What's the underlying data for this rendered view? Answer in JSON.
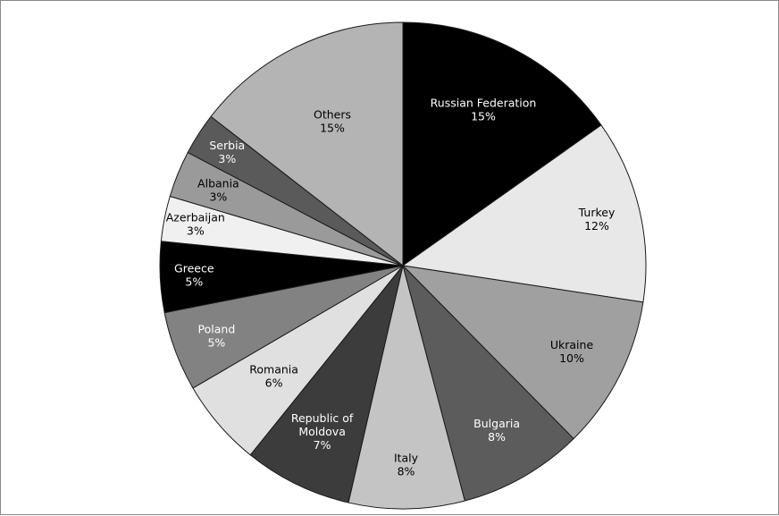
{
  "chart_data": {
    "type": "pie",
    "title": "",
    "start_direction": "top",
    "direction": "clockwise",
    "slices": [
      {
        "label_lines": [
          "Russian Federation"
        ],
        "value_label": "15%",
        "value": 15.2,
        "color": "#000000",
        "text_color": "#ffffff"
      },
      {
        "label_lines": [
          "Turkey"
        ],
        "value_label": "12%",
        "value": 12.2,
        "color": "#e8e8e8",
        "text_color": "#000000"
      },
      {
        "label_lines": [
          "Ukraine"
        ],
        "value_label": "10%",
        "value": 10.2,
        "color": "#a0a0a0",
        "text_color": "#000000"
      },
      {
        "label_lines": [
          "Bulgaria"
        ],
        "value_label": "8%",
        "value": 8.3,
        "color": "#5c5c5c",
        "text_color": "#ffffff"
      },
      {
        "label_lines": [
          "Italy"
        ],
        "value_label": "8%",
        "value": 7.7,
        "color": "#c4c4c4",
        "text_color": "#000000"
      },
      {
        "label_lines": [
          "Republic of",
          "Moldova"
        ],
        "value_label": "7%",
        "value": 7.2,
        "color": "#3c3c3c",
        "text_color": "#ffffff"
      },
      {
        "label_lines": [
          "Romania"
        ],
        "value_label": "6%",
        "value": 5.8,
        "color": "#e0e0e0",
        "text_color": "#000000"
      },
      {
        "label_lines": [
          "Poland"
        ],
        "value_label": "5%",
        "value": 5.3,
        "color": "#828282",
        "text_color": "#ffffff"
      },
      {
        "label_lines": [
          "Greece"
        ],
        "value_label": "5%",
        "value": 4.7,
        "color": "#000000",
        "text_color": "#ffffff"
      },
      {
        "label_lines": [
          "Azerbaijan"
        ],
        "value_label": "3%",
        "value": 3.0,
        "color": "#f0f0f0",
        "text_color": "#000000"
      },
      {
        "label_lines": [
          "Albania"
        ],
        "value_label": "3%",
        "value": 3.1,
        "color": "#9a9a9a",
        "text_color": "#000000"
      },
      {
        "label_lines": [
          "Serbia"
        ],
        "value_label": "3%",
        "value": 2.8,
        "color": "#5a5a5a",
        "text_color": "#ffffff"
      },
      {
        "label_lines": [
          "Others"
        ],
        "value_label": "15%",
        "value": 14.5,
        "color": "#b4b4b4",
        "text_color": "#000000"
      }
    ]
  }
}
